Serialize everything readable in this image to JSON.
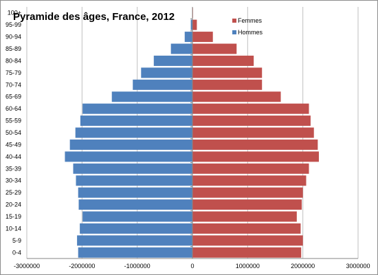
{
  "chart_data": {
    "type": "bar",
    "orientation": "horizontal",
    "title": "Pyramide des âges, France, 2012",
    "categories": [
      "0-4",
      "5-9",
      "10-14",
      "15-19",
      "20-24",
      "25-29",
      "30-34",
      "35-39",
      "40-44",
      "45-49",
      "50-54",
      "55-59",
      "60-64",
      "65-69",
      "70-74",
      "75-79",
      "80-84",
      "85-89",
      "90-94",
      "95-99",
      "100+"
    ],
    "series": [
      {
        "name": "Femmes",
        "color": "#c0504d",
        "values": [
          1970000,
          2000000,
          1960000,
          1890000,
          1980000,
          2000000,
          2060000,
          2110000,
          2290000,
          2270000,
          2200000,
          2140000,
          2110000,
          1600000,
          1260000,
          1260000,
          1110000,
          800000,
          370000,
          80000,
          10000
        ]
      },
      {
        "name": "Hommes",
        "color": "#4f81bd",
        "values": [
          -2070000,
          -2090000,
          -2040000,
          -1990000,
          -2060000,
          -2070000,
          -2110000,
          -2160000,
          -2310000,
          -2220000,
          -2120000,
          -2030000,
          -1990000,
          -1460000,
          -1080000,
          -930000,
          -700000,
          -390000,
          -140000,
          -30000,
          -3000
        ]
      }
    ],
    "x_ticks": [
      "-3000000",
      "-2000000",
      "-1000000",
      "0",
      "1000000",
      "2000000",
      "3000000"
    ],
    "xlim": [
      -3000000,
      3000000
    ],
    "grid": "vertical",
    "legend_position": "top-right"
  }
}
